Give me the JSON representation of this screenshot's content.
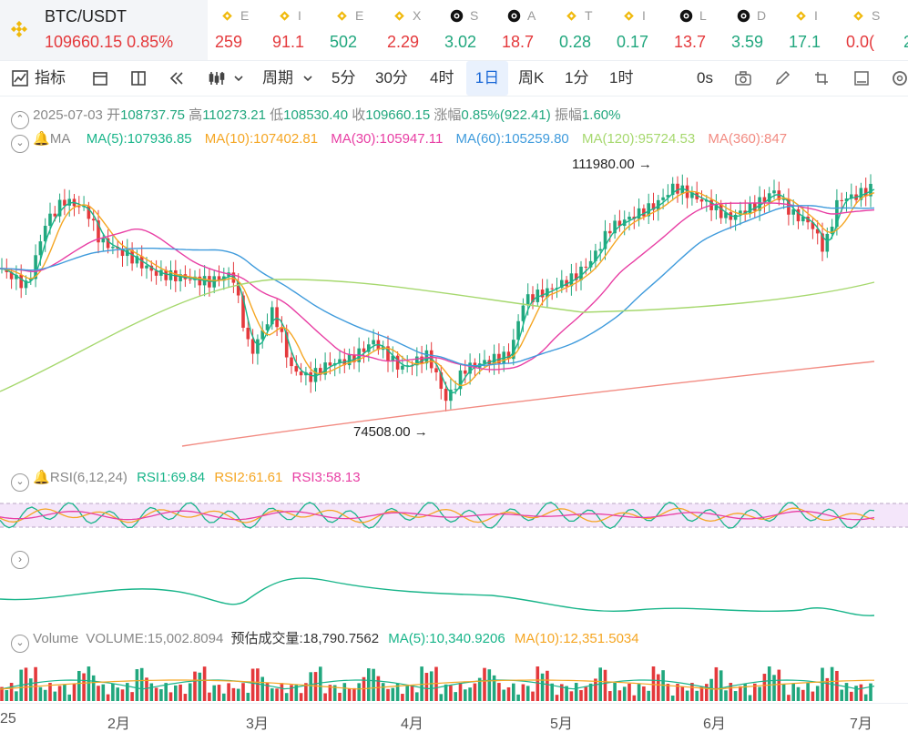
{
  "symbol": {
    "name": "BTC/USDT",
    "price": "109660.15",
    "change": "0.85%"
  },
  "tickers": [
    {
      "icon": "bnb-icon",
      "name": "E",
      "value": "259",
      "color": "#e4393c"
    },
    {
      "icon": "bnb-icon",
      "name": "I",
      "value": "91.1",
      "color": "#e4393c"
    },
    {
      "icon": "bnb-icon",
      "name": "E",
      "value": "502",
      "color": "#21a77e"
    },
    {
      "icon": "bnb-icon",
      "name": "X",
      "value": "2.29",
      "color": "#e4393c"
    },
    {
      "icon": "chain-icon",
      "name": "S",
      "value": "3.02",
      "color": "#21a77e"
    },
    {
      "icon": "chain-icon",
      "name": "A",
      "value": "18.7",
      "color": "#e4393c"
    },
    {
      "icon": "bnb-icon",
      "name": "T",
      "value": "0.28",
      "color": "#21a77e"
    },
    {
      "icon": "bnb-icon",
      "name": "I",
      "value": "0.17",
      "color": "#21a77e"
    },
    {
      "icon": "chain-icon",
      "name": "L",
      "value": "13.7",
      "color": "#e4393c"
    },
    {
      "icon": "chain-icon",
      "name": "D",
      "value": "3.59",
      "color": "#21a77e"
    },
    {
      "icon": "bnb-icon",
      "name": "I",
      "value": "17.1",
      "color": "#21a77e"
    },
    {
      "icon": "bnb-icon",
      "name": "S",
      "value": "0.0(",
      "color": "#e4393c"
    },
    {
      "icon": "bnb-icon",
      "name": "",
      "value": "2",
      "color": "#21a77e"
    }
  ],
  "toolbar": {
    "indicators": "指标",
    "period": "周期",
    "p5m": "5分",
    "p30m": "30分",
    "p4h": "4时",
    "p1d": "1日",
    "weekk": "周K",
    "p1m": "1分",
    "p1h": "1时",
    "zero_s": "0s"
  },
  "ohlc": {
    "date": "2025-07-03",
    "open_l": "开",
    "open": "108737.75",
    "high_l": "高",
    "high": "110273.21",
    "low_l": "低",
    "low": "108530.40",
    "close_l": "收",
    "close": "109660.15",
    "chg_l": "涨幅",
    "chg": "0.85%(922.41)",
    "amp_l": "振幅",
    "amp": "1.60%"
  },
  "ma": {
    "label": "MA",
    "ma5": "MA(5):107936.85",
    "ma10": "MA(10):107402.81",
    "ma30": "MA(30):105947.11",
    "ma60": "MA(60):105259.80",
    "ma120": "MA(120):95724.53",
    "ma360": "MA(360):847"
  },
  "annotations": {
    "high": "111980.00",
    "low": "74508.00"
  },
  "rsi": {
    "label": "RSI(6,12,24)",
    "rsi1": "RSI1:69.84",
    "rsi2": "RSI2:61.61",
    "rsi3": "RSI3:58.13"
  },
  "volume": {
    "label": "Volume",
    "vol": "VOLUME:15,002.8094",
    "est_label": "预估成交量:",
    "est": "18,790.7562",
    "ma5": "MA(5):10,340.9206",
    "ma10": "MA(10):12,351.5034"
  },
  "xaxis": [
    "25",
    "2月",
    "3月",
    "4月",
    "5月",
    "6月",
    "7月"
  ],
  "colors": {
    "up": "#21a77e",
    "down": "#e4393c",
    "ma5": "#19b58a",
    "ma10": "#f5a623",
    "ma30": "#e83fa4",
    "ma60": "#3f9bdc",
    "ma120": "#a6d86e",
    "ma360": "#f28b82",
    "rsi1": "#19b58a",
    "rsi2": "#f5a623",
    "rsi3": "#e83fa4",
    "active": "#1766d6"
  }
}
